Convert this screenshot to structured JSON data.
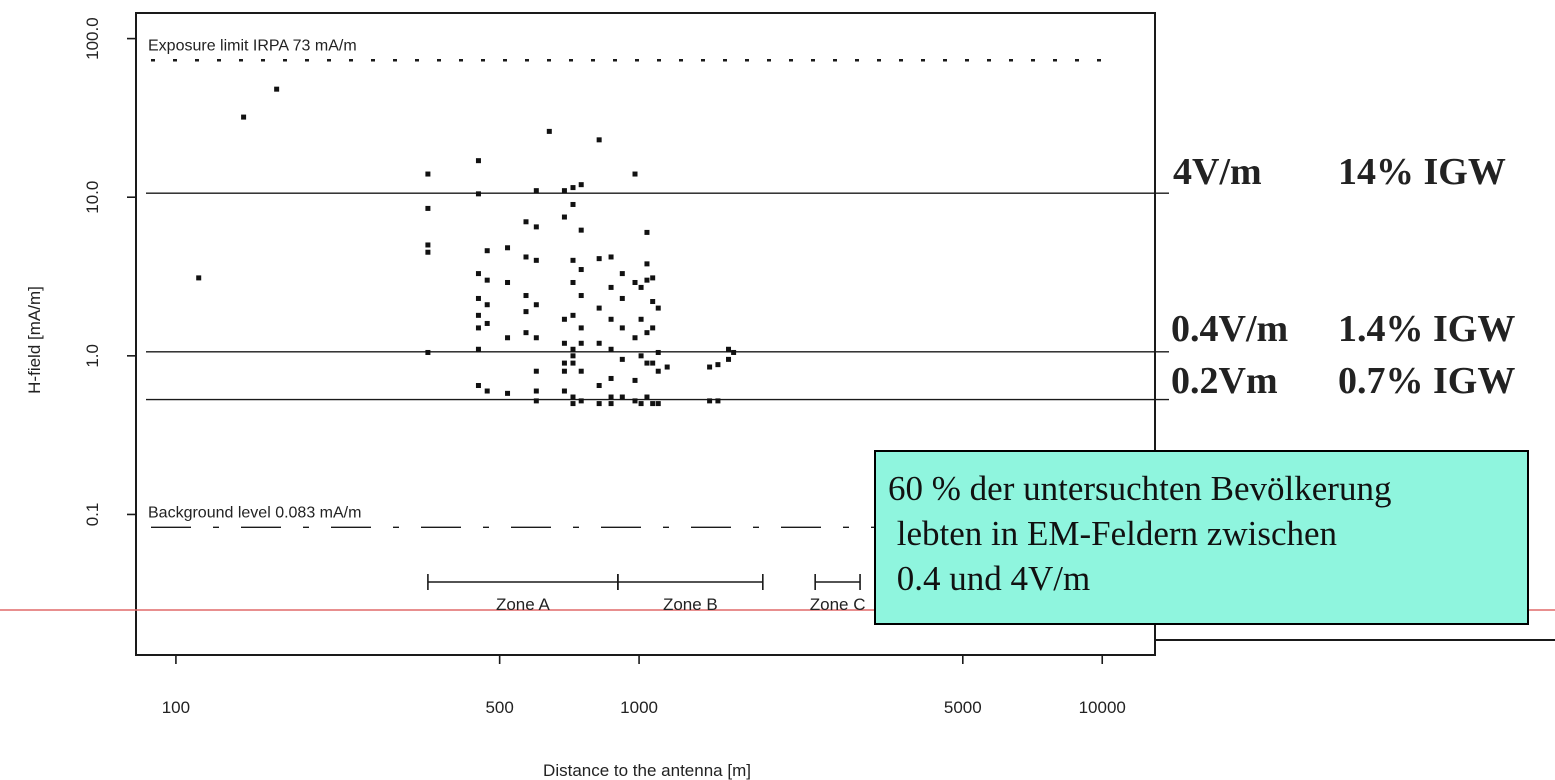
{
  "chart_data": {
    "type": "scatter",
    "xlabel": "Distance to the antenna [m]",
    "ylabel": "H-field [mA/m]",
    "xscale": "log",
    "yscale": "log",
    "xlim": [
      82,
      13000
    ],
    "ylim": [
      0.013,
      145
    ],
    "xticks": [
      100,
      500,
      1000,
      5000,
      10000
    ],
    "xtick_labels": [
      "100",
      "500",
      "1000",
      "5000",
      "10000"
    ],
    "yticks": [
      0.1,
      1.0,
      10.0,
      100.0
    ],
    "ytick_labels": [
      "0.1",
      "1.0",
      "10.0",
      "100.0"
    ],
    "grid": false,
    "reference_lines": [
      {
        "y": 73,
        "style": "dotted",
        "label": "Exposure limit IRPA 73 mA/m"
      },
      {
        "y": 10.6,
        "style": "solid",
        "label": ""
      },
      {
        "y": 1.06,
        "style": "solid",
        "label": ""
      },
      {
        "y": 0.53,
        "style": "solid",
        "label": ""
      },
      {
        "y": 0.083,
        "style": "dashed",
        "label": "Background level 0.083 mA/m"
      }
    ],
    "zones": [
      {
        "label": "Zone A",
        "x_start": 350,
        "x_end": 900
      },
      {
        "label": "Zone B",
        "x_start": 900,
        "x_end": 1850
      },
      {
        "label": "Zone C",
        "x_start": 2400,
        "x_end": 3000
      }
    ],
    "points": [
      [
        112,
        3.1
      ],
      [
        140,
        32
      ],
      [
        165,
        48
      ],
      [
        350,
        14
      ],
      [
        350,
        8.5
      ],
      [
        350,
        5
      ],
      [
        350,
        4.5
      ],
      [
        350,
        1.05
      ],
      [
        450,
        17
      ],
      [
        450,
        10.5
      ],
      [
        450,
        3.3
      ],
      [
        450,
        2.3
      ],
      [
        450,
        1.8
      ],
      [
        450,
        1.5
      ],
      [
        450,
        1.1
      ],
      [
        450,
        0.65
      ],
      [
        470,
        4.6
      ],
      [
        470,
        3.0
      ],
      [
        470,
        2.1
      ],
      [
        470,
        1.6
      ],
      [
        470,
        0.6
      ],
      [
        520,
        4.8
      ],
      [
        520,
        2.9
      ],
      [
        520,
        1.3
      ],
      [
        520,
        0.58
      ],
      [
        570,
        7.0
      ],
      [
        570,
        4.2
      ],
      [
        570,
        2.4
      ],
      [
        570,
        1.9
      ],
      [
        570,
        1.4
      ],
      [
        600,
        11
      ],
      [
        600,
        6.5
      ],
      [
        600,
        4.0
      ],
      [
        600,
        2.1
      ],
      [
        600,
        1.3
      ],
      [
        600,
        0.8
      ],
      [
        600,
        0.6
      ],
      [
        600,
        0.52
      ],
      [
        640,
        26
      ],
      [
        690,
        11
      ],
      [
        690,
        7.5
      ],
      [
        690,
        1.7
      ],
      [
        690,
        1.2
      ],
      [
        690,
        0.9
      ],
      [
        690,
        0.8
      ],
      [
        690,
        0.6
      ],
      [
        720,
        11.5
      ],
      [
        720,
        9.0
      ],
      [
        720,
        4.0
      ],
      [
        720,
        2.9
      ],
      [
        720,
        1.8
      ],
      [
        720,
        1.1
      ],
      [
        720,
        1.0
      ],
      [
        720,
        0.9
      ],
      [
        720,
        0.55
      ],
      [
        720,
        0.5
      ],
      [
        750,
        12
      ],
      [
        750,
        6.2
      ],
      [
        750,
        3.5
      ],
      [
        750,
        2.4
      ],
      [
        750,
        1.5
      ],
      [
        750,
        1.2
      ],
      [
        750,
        0.8
      ],
      [
        750,
        0.52
      ],
      [
        820,
        23
      ],
      [
        820,
        4.1
      ],
      [
        820,
        2.0
      ],
      [
        820,
        1.2
      ],
      [
        820,
        0.65
      ],
      [
        820,
        0.5
      ],
      [
        870,
        4.2
      ],
      [
        870,
        2.7
      ],
      [
        870,
        1.7
      ],
      [
        870,
        1.1
      ],
      [
        870,
        0.72
      ],
      [
        870,
        0.55
      ],
      [
        870,
        0.5
      ],
      [
        920,
        3.3
      ],
      [
        920,
        2.3
      ],
      [
        920,
        1.5
      ],
      [
        920,
        0.95
      ],
      [
        920,
        0.55
      ],
      [
        980,
        14
      ],
      [
        980,
        2.9
      ],
      [
        980,
        1.3
      ],
      [
        980,
        0.7
      ],
      [
        980,
        0.52
      ],
      [
        1010,
        2.7
      ],
      [
        1010,
        1.7
      ],
      [
        1010,
        1.0
      ],
      [
        1010,
        0.5
      ],
      [
        1040,
        6.0
      ],
      [
        1040,
        3.8
      ],
      [
        1040,
        3.0
      ],
      [
        1040,
        1.4
      ],
      [
        1040,
        0.9
      ],
      [
        1040,
        0.55
      ],
      [
        1070,
        3.1
      ],
      [
        1070,
        2.2
      ],
      [
        1070,
        1.5
      ],
      [
        1070,
        0.9
      ],
      [
        1070,
        0.5
      ],
      [
        1100,
        2.0
      ],
      [
        1100,
        1.05
      ],
      [
        1100,
        0.8
      ],
      [
        1100,
        0.5
      ],
      [
        1150,
        0.85
      ],
      [
        1420,
        0.85
      ],
      [
        1420,
        0.52
      ],
      [
        1480,
        0.88
      ],
      [
        1480,
        0.52
      ],
      [
        1560,
        1.1
      ],
      [
        1560,
        0.95
      ],
      [
        1600,
        1.05
      ]
    ]
  },
  "side_labels": [
    {
      "field": "4V/m",
      "percent": "14% IGW"
    },
    {
      "field": "0.4V/m",
      "percent": "1.4% IGW"
    },
    {
      "field": "0.2Vm",
      "percent": "0.7% IGW"
    }
  ],
  "annotation": {
    "text": "60 % der untersuchten Bevölkerung\n lebten in EM-Feldern zwischen\n 0.4 und 4V/m",
    "background": "#8ff5de"
  },
  "colors": {
    "axis": "#1a1a1a",
    "points": "#111111",
    "separator_line": "#e06a6a"
  }
}
